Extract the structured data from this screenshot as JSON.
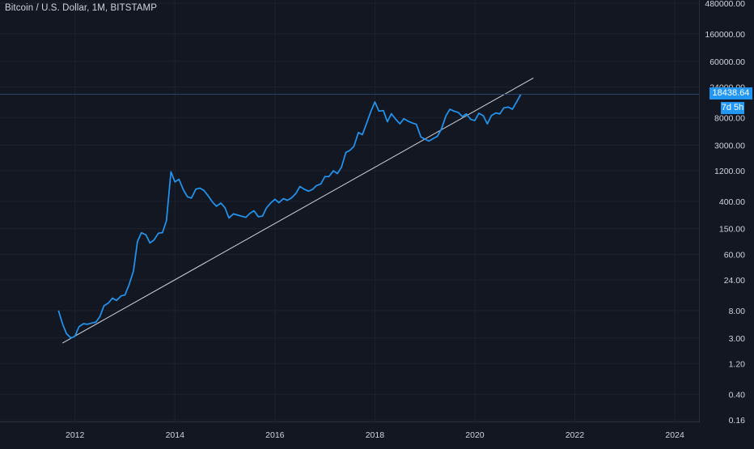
{
  "header": {
    "title": "Bitcoin / U.S. Dollar, 1M, BITSTAMP"
  },
  "price_badge": "18438.64",
  "time_badge": "7d 5h",
  "colors": {
    "background": "#131722",
    "grid": "#1e2230",
    "price_line": "#2196f3",
    "trend_line": "#d1d4dc",
    "axis_text": "#d1d4dc",
    "badge": "#2196f3"
  },
  "chart_data": {
    "type": "line",
    "title": "Bitcoin / U.S. Dollar, 1M, BITSTAMP",
    "xlabel": "",
    "ylabel": "",
    "y_scale": "log",
    "grid": true,
    "xlim": [
      2010.5,
      2024.5
    ],
    "ylim": [
      0.16,
      480000
    ],
    "x_ticks": [
      {
        "value": 2012,
        "label": "2012"
      },
      {
        "value": 2014,
        "label": "2014"
      },
      {
        "value": 2016,
        "label": "2016"
      },
      {
        "value": 2018,
        "label": "2018"
      },
      {
        "value": 2020,
        "label": "2020"
      },
      {
        "value": 2022,
        "label": "2022"
      },
      {
        "value": 2024,
        "label": "2024"
      }
    ],
    "y_ticks": [
      {
        "value": 480000,
        "label": "480000.00"
      },
      {
        "value": 160000,
        "label": "160000.00"
      },
      {
        "value": 60000,
        "label": "60000.00"
      },
      {
        "value": 24000,
        "label": "24000.00"
      },
      {
        "value": 8000,
        "label": "8000.00"
      },
      {
        "value": 3000,
        "label": "3000.00"
      },
      {
        "value": 1200,
        "label": "1200.00"
      },
      {
        "value": 400,
        "label": "400.00"
      },
      {
        "value": 150,
        "label": "150.00"
      },
      {
        "value": 60,
        "label": "60.00"
      },
      {
        "value": 24,
        "label": "24.00"
      },
      {
        "value": 8,
        "label": "8.00"
      },
      {
        "value": 3,
        "label": "3.00"
      },
      {
        "value": 1.2,
        "label": "1.20"
      },
      {
        "value": 0.4,
        "label": "0.40"
      },
      {
        "value": 0.16,
        "label": "0.16"
      }
    ],
    "current_price": 18438.64,
    "series": [
      {
        "points": [
          [
            2011.67,
            8.0
          ],
          [
            2011.75,
            5.0
          ],
          [
            2011.83,
            3.5
          ],
          [
            2011.92,
            3.0
          ],
          [
            2012.0,
            3.2
          ],
          [
            2012.08,
            4.5
          ],
          [
            2012.17,
            5.0
          ],
          [
            2012.25,
            4.9
          ],
          [
            2012.33,
            5.1
          ],
          [
            2012.42,
            5.3
          ],
          [
            2012.5,
            6.5
          ],
          [
            2012.58,
            9.5
          ],
          [
            2012.67,
            10.5
          ],
          [
            2012.75,
            12.5
          ],
          [
            2012.83,
            11.5
          ],
          [
            2012.92,
            13.5
          ],
          [
            2013.0,
            14.0
          ],
          [
            2013.08,
            20.0
          ],
          [
            2013.17,
            33.0
          ],
          [
            2013.25,
            95.0
          ],
          [
            2013.33,
            130.0
          ],
          [
            2013.42,
            120.0
          ],
          [
            2013.5,
            90.0
          ],
          [
            2013.58,
            100.0
          ],
          [
            2013.67,
            128.0
          ],
          [
            2013.75,
            130.0
          ],
          [
            2013.83,
            200.0
          ],
          [
            2013.92,
            1150.0
          ],
          [
            2014.0,
            800.0
          ],
          [
            2014.08,
            880.0
          ],
          [
            2014.17,
            600.0
          ],
          [
            2014.25,
            470.0
          ],
          [
            2014.33,
            450.0
          ],
          [
            2014.42,
            620.0
          ],
          [
            2014.5,
            640.0
          ],
          [
            2014.58,
            590.0
          ],
          [
            2014.67,
            480.0
          ],
          [
            2014.75,
            390.0
          ],
          [
            2014.83,
            335.0
          ],
          [
            2014.92,
            375.0
          ],
          [
            2015.0,
            318.0
          ],
          [
            2015.08,
            220.0
          ],
          [
            2015.17,
            255.0
          ],
          [
            2015.25,
            245.0
          ],
          [
            2015.33,
            235.0
          ],
          [
            2015.42,
            225.0
          ],
          [
            2015.5,
            260.0
          ],
          [
            2015.58,
            285.0
          ],
          [
            2015.67,
            230.0
          ],
          [
            2015.75,
            235.0
          ],
          [
            2015.83,
            315.0
          ],
          [
            2015.92,
            380.0
          ],
          [
            2016.0,
            430.0
          ],
          [
            2016.08,
            380.0
          ],
          [
            2016.17,
            440.0
          ],
          [
            2016.25,
            415.0
          ],
          [
            2016.33,
            450.0
          ],
          [
            2016.42,
            530.0
          ],
          [
            2016.5,
            680.0
          ],
          [
            2016.58,
            620.0
          ],
          [
            2016.67,
            575.0
          ],
          [
            2016.75,
            610.0
          ],
          [
            2016.83,
            700.0
          ],
          [
            2016.92,
            745.0
          ],
          [
            2017.0,
            970.0
          ],
          [
            2017.08,
            970.0
          ],
          [
            2017.17,
            1190.0
          ],
          [
            2017.25,
            1080.0
          ],
          [
            2017.33,
            1350.0
          ],
          [
            2017.42,
            2300.0
          ],
          [
            2017.5,
            2480.0
          ],
          [
            2017.58,
            2850.0
          ],
          [
            2017.67,
            4700.0
          ],
          [
            2017.75,
            4340.0
          ],
          [
            2017.83,
            6400.0
          ],
          [
            2017.92,
            10000.0
          ],
          [
            2018.0,
            14000.0
          ],
          [
            2018.08,
            10100.0
          ],
          [
            2018.17,
            10300.0
          ],
          [
            2018.25,
            6900.0
          ],
          [
            2018.33,
            9200.0
          ],
          [
            2018.42,
            7500.0
          ],
          [
            2018.5,
            6400.0
          ],
          [
            2018.58,
            7700.0
          ],
          [
            2018.67,
            7000.0
          ],
          [
            2018.75,
            6600.0
          ],
          [
            2018.83,
            6300.0
          ],
          [
            2018.92,
            4000.0
          ],
          [
            2019.0,
            3700.0
          ],
          [
            2019.08,
            3450.0
          ],
          [
            2019.17,
            3800.0
          ],
          [
            2019.25,
            4100.0
          ],
          [
            2019.33,
            5300.0
          ],
          [
            2019.42,
            8500.0
          ],
          [
            2019.5,
            10800.0
          ],
          [
            2019.58,
            10100.0
          ],
          [
            2019.67,
            9600.0
          ],
          [
            2019.75,
            8300.0
          ],
          [
            2019.83,
            9150.0
          ],
          [
            2019.92,
            7500.0
          ],
          [
            2020.0,
            7200.0
          ],
          [
            2020.08,
            9350.0
          ],
          [
            2020.17,
            8550.0
          ],
          [
            2020.25,
            6400.0
          ],
          [
            2020.33,
            8600.0
          ],
          [
            2020.42,
            9450.0
          ],
          [
            2020.5,
            9150.0
          ],
          [
            2020.58,
            11350.0
          ],
          [
            2020.67,
            11650.0
          ],
          [
            2020.75,
            10800.0
          ],
          [
            2020.83,
            13800.0
          ],
          [
            2020.92,
            18438.64
          ]
        ]
      }
    ],
    "trend_line": [
      [
        2011.75,
        2.5
      ],
      [
        2021.17,
        33000.0
      ]
    ]
  }
}
